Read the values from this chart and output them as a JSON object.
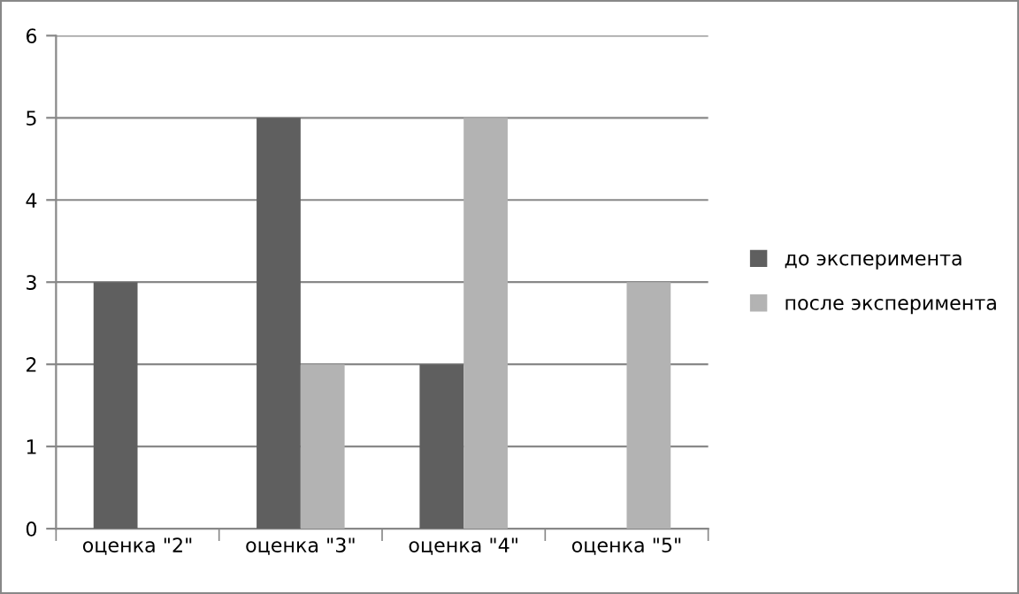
{
  "chart_data": {
    "type": "bar",
    "categories": [
      "оценка \"2\"",
      "оценка \"3\"",
      "оценка \"4\"",
      "оценка \"5\""
    ],
    "series": [
      {
        "name": "до эксперимента",
        "color": "#5f5f5f",
        "values": [
          3,
          5,
          2,
          0
        ]
      },
      {
        "name": "после эксперимента",
        "color": "#b3b3b3",
        "values": [
          0,
          2,
          5,
          3
        ]
      }
    ],
    "ylim": [
      0,
      6
    ],
    "yticks": [
      0,
      1,
      2,
      3,
      4,
      5,
      6
    ],
    "grid": "y",
    "legend": "right"
  }
}
